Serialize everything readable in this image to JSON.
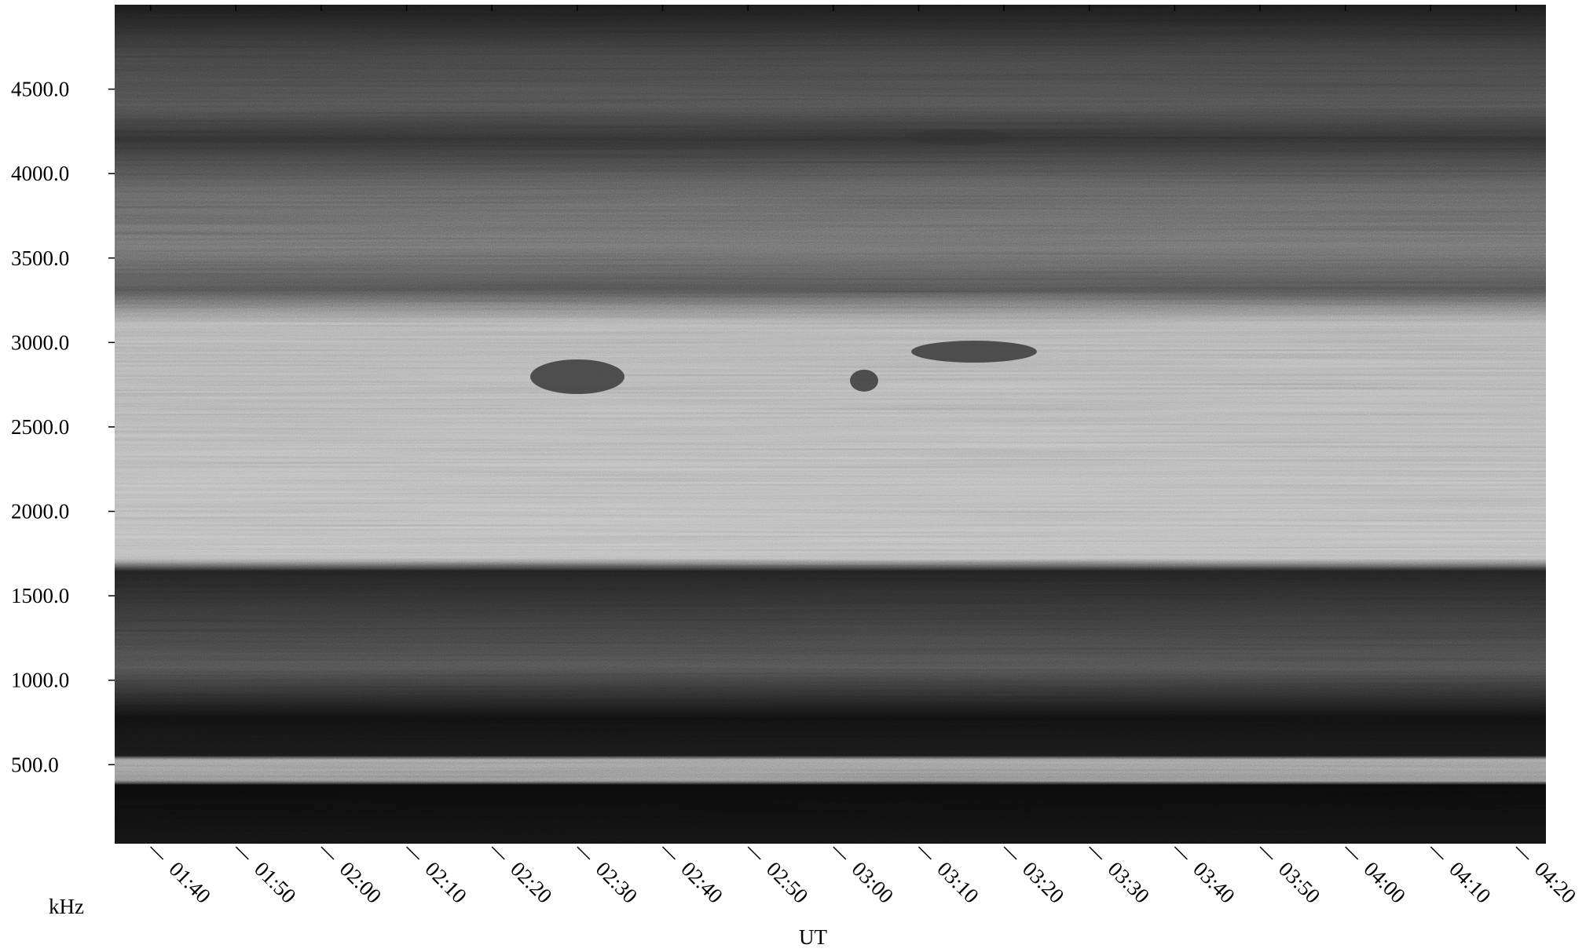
{
  "chart_data": {
    "type": "spectrogram",
    "y_axis_label": "kHz",
    "x_axis_label": "UT",
    "ylim": [
      32,
      5000
    ],
    "yticks": [
      {
        "value": 500,
        "label": "500.0"
      },
      {
        "value": 1000,
        "label": "1000.0"
      },
      {
        "value": 1500,
        "label": "1500.0"
      },
      {
        "value": 2000,
        "label": "2000.0"
      },
      {
        "value": 2500,
        "label": "2500.0"
      },
      {
        "value": 3000,
        "label": "3000.0"
      },
      {
        "value": 3500,
        "label": "3500.0"
      },
      {
        "value": 4000,
        "label": "4000.0"
      },
      {
        "value": 4500,
        "label": "4500.0"
      }
    ],
    "xlim": [
      95.8,
      263.5
    ],
    "xticks": [
      {
        "value": 100,
        "label": "01:40"
      },
      {
        "value": 110,
        "label": "01:50"
      },
      {
        "value": 120,
        "label": "02:00"
      },
      {
        "value": 130,
        "label": "02:10"
      },
      {
        "value": 140,
        "label": "02:20"
      },
      {
        "value": 150,
        "label": "02:30"
      },
      {
        "value": 160,
        "label": "02:40"
      },
      {
        "value": 170,
        "label": "02:50"
      },
      {
        "value": 180,
        "label": "03:00"
      },
      {
        "value": 190,
        "label": "03:10"
      },
      {
        "value": 200,
        "label": "03:20"
      },
      {
        "value": 210,
        "label": "03:30"
      },
      {
        "value": 220,
        "label": "03:40"
      },
      {
        "value": 230,
        "label": "03:50"
      },
      {
        "value": 240,
        "label": "04:00"
      },
      {
        "value": 250,
        "label": "04:10"
      },
      {
        "value": 260,
        "label": "04:20"
      }
    ],
    "colormap": "grayscale"
  }
}
